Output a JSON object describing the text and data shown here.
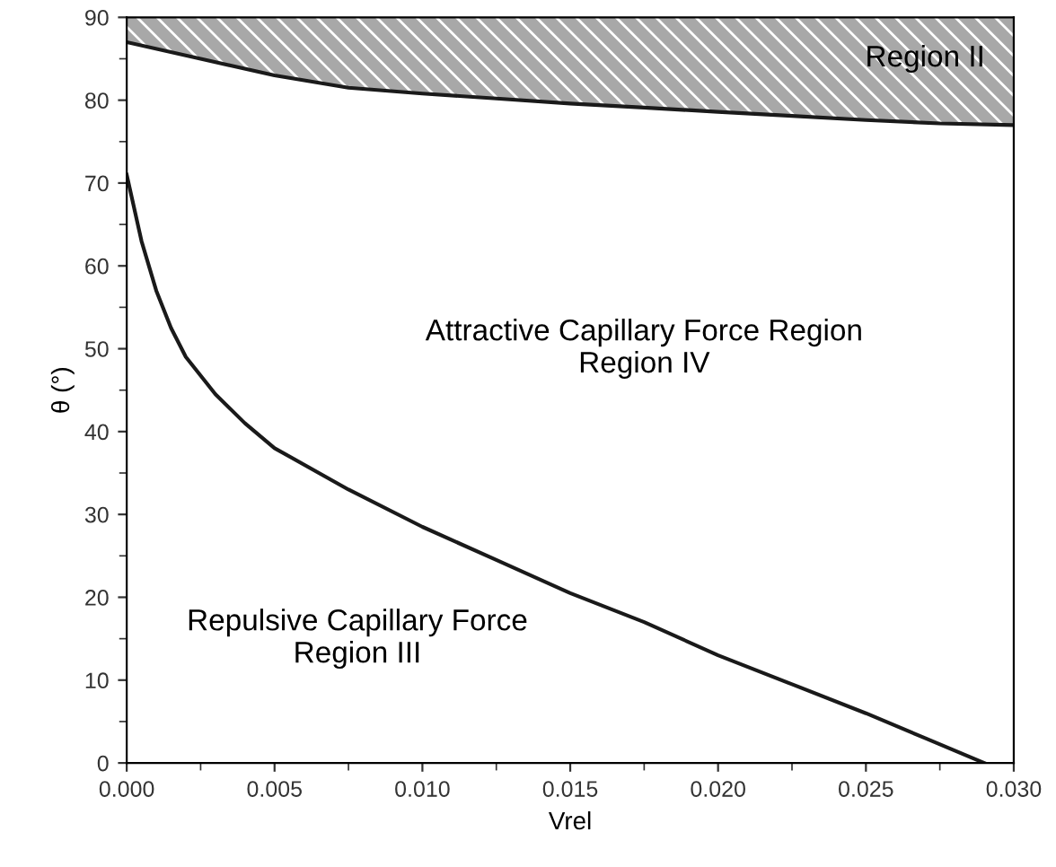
{
  "chart_data": {
    "type": "line",
    "xlabel": "Vrel",
    "ylabel": "θ (°)",
    "xlim": [
      0,
      0.03
    ],
    "ylim": [
      0,
      90
    ],
    "xticks": [
      {
        "value": 0,
        "label": "0.000"
      },
      {
        "value": 0.005,
        "label": "0.005"
      },
      {
        "value": 0.01,
        "label": "0.010"
      },
      {
        "value": 0.015,
        "label": "0.015"
      },
      {
        "value": 0.02,
        "label": "0.020"
      },
      {
        "value": 0.025,
        "label": "0.025"
      },
      {
        "value": 0.03,
        "label": "0.030"
      }
    ],
    "yticks": [
      0,
      10,
      20,
      30,
      40,
      50,
      60,
      70,
      80,
      90
    ],
    "grid": false,
    "legend": false,
    "marker": "none",
    "line_style": "solid",
    "series": [
      {
        "color": "#1a1a1a",
        "x": [
          0,
          0.0025,
          0.005,
          0.0075,
          0.01,
          0.0125,
          0.015,
          0.0175,
          0.02,
          0.0225,
          0.025,
          0.0275,
          0.03
        ],
        "values": [
          87,
          85,
          83,
          81.5,
          80.8,
          80.2,
          79.6,
          79.1,
          78.6,
          78.1,
          77.6,
          77.2,
          77
        ],
        "lower": [
          87,
          85,
          83,
          81.5,
          80.8,
          80.2,
          79.6,
          79.1,
          78.6,
          78.1,
          77.6,
          77.2,
          77
        ],
        "upper": [
          90,
          90,
          90,
          90,
          90,
          90,
          90,
          90,
          90,
          90,
          90,
          90,
          90
        ]
      },
      {
        "color": "#1a1a1a",
        "x": [
          0,
          0.0005,
          0.001,
          0.0015,
          0.002,
          0.003,
          0.004,
          0.005,
          0.0075,
          0.01,
          0.0125,
          0.015,
          0.0175,
          0.02,
          0.0225,
          0.025,
          0.027,
          0.029
        ],
        "values": [
          71,
          63,
          57,
          52.5,
          49,
          44.5,
          41,
          38,
          33,
          28.5,
          24.5,
          20.5,
          17,
          13,
          9.5,
          6,
          3,
          0
        ]
      }
    ],
    "annotations": [
      "Region II",
      "Attractive Capillary Force Region\nRegion IV",
      "Repulsive Capillary Force\nRegion III"
    ]
  }
}
